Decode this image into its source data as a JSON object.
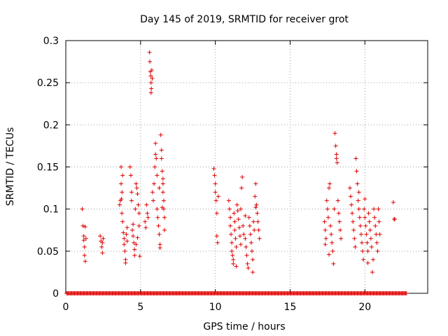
{
  "chart_data": {
    "type": "scatter",
    "title": "Day 145 of 2019, SRMTID for receiver grot",
    "xlabel": "GPS time / hours",
    "ylabel": "SRMTID / TECUs",
    "xlim": [
      0,
      24.2
    ],
    "ylim": [
      0,
      0.3
    ],
    "x_ticks": [
      0,
      5,
      10,
      15,
      20
    ],
    "x_tick_labels": [
      "0",
      "5",
      "10",
      "15",
      "20"
    ],
    "y_ticks": [
      0,
      0.05,
      0.1,
      0.15,
      0.2,
      0.25,
      0.3
    ],
    "y_tick_labels": [
      "0",
      "0.05",
      "0.1",
      "0.15",
      "0.2",
      "0.25",
      "0.3"
    ],
    "grid": true,
    "marker": "plus",
    "series": [
      {
        "name": "SRMTID",
        "color": "#e00000",
        "points": [
          [
            1.1,
            0.1
          ],
          [
            1.15,
            0.08
          ],
          [
            1.2,
            0.068
          ],
          [
            1.2,
            0.063
          ],
          [
            1.25,
            0.055
          ],
          [
            1.25,
            0.045
          ],
          [
            1.3,
            0.038
          ],
          [
            1.3,
            0.079
          ],
          [
            1.35,
            0.065
          ],
          [
            2.3,
            0.068
          ],
          [
            2.35,
            0.062
          ],
          [
            2.4,
            0.055
          ],
          [
            2.45,
            0.048
          ],
          [
            2.5,
            0.065
          ],
          [
            2.45,
            0.06
          ],
          [
            3.6,
            0.105
          ],
          [
            3.65,
            0.11
          ],
          [
            3.7,
            0.13
          ],
          [
            3.7,
            0.15
          ],
          [
            3.75,
            0.095
          ],
          [
            3.8,
            0.14
          ],
          [
            3.8,
            0.085
          ],
          [
            3.85,
            0.072
          ],
          [
            3.9,
            0.065
          ],
          [
            3.9,
            0.058
          ],
          [
            3.95,
            0.05
          ],
          [
            4.0,
            0.04
          ],
          [
            4.0,
            0.036
          ],
          [
            4.05,
            0.07
          ],
          [
            4.1,
            0.062
          ],
          [
            4.1,
            0.078
          ],
          [
            3.72,
            0.112
          ],
          [
            3.76,
            0.12
          ],
          [
            4.3,
            0.15
          ],
          [
            4.35,
            0.14
          ],
          [
            4.4,
            0.12
          ],
          [
            4.4,
            0.11
          ],
          [
            4.45,
            0.075
          ],
          [
            4.5,
            0.082
          ],
          [
            4.5,
            0.068
          ],
          [
            4.55,
            0.06
          ],
          [
            4.6,
            0.052
          ],
          [
            4.6,
            0.045
          ],
          [
            4.65,
            0.1
          ],
          [
            4.7,
            0.13
          ],
          [
            4.75,
            0.125
          ],
          [
            4.8,
            0.118
          ],
          [
            4.85,
            0.105
          ],
          [
            4.9,
            0.095
          ],
          [
            4.9,
            0.08
          ],
          [
            4.95,
            0.044
          ],
          [
            4.7,
            0.058
          ],
          [
            4.8,
            0.066
          ],
          [
            5.3,
            0.085
          ],
          [
            5.35,
            0.078
          ],
          [
            5.4,
            0.105
          ],
          [
            5.45,
            0.095
          ],
          [
            5.5,
            0.09
          ],
          [
            5.6,
            0.286
          ],
          [
            5.62,
            0.275
          ],
          [
            5.65,
            0.263
          ],
          [
            5.68,
            0.258
          ],
          [
            5.7,
            0.25
          ],
          [
            5.72,
            0.243
          ],
          [
            5.7,
            0.238
          ],
          [
            5.75,
            0.265
          ],
          [
            5.78,
            0.255
          ],
          [
            5.8,
            0.12
          ],
          [
            5.85,
            0.11
          ],
          [
            5.9,
            0.13
          ],
          [
            5.95,
            0.15
          ],
          [
            6.0,
            0.178
          ],
          [
            6.0,
            0.165
          ],
          [
            6.05,
            0.16
          ],
          [
            6.1,
            0.14
          ],
          [
            6.1,
            0.1
          ],
          [
            6.15,
            0.09
          ],
          [
            6.2,
            0.08
          ],
          [
            6.25,
            0.07
          ],
          [
            6.3,
            0.058
          ],
          [
            6.3,
            0.054
          ],
          [
            6.35,
            0.188
          ],
          [
            6.4,
            0.17
          ],
          [
            6.4,
            0.16
          ],
          [
            6.45,
            0.145
          ],
          [
            6.5,
            0.13
          ],
          [
            6.5,
            0.12
          ],
          [
            6.55,
            0.11
          ],
          [
            6.55,
            0.1
          ],
          [
            6.6,
            0.09
          ],
          [
            6.6,
            0.075
          ],
          [
            6.45,
            0.102
          ],
          [
            6.5,
            0.136
          ],
          [
            6.25,
            0.125
          ],
          [
            9.9,
            0.148
          ],
          [
            9.95,
            0.14
          ],
          [
            10.0,
            0.13
          ],
          [
            10.0,
            0.12
          ],
          [
            10.05,
            0.11
          ],
          [
            10.1,
            0.095
          ],
          [
            10.1,
            0.068
          ],
          [
            10.15,
            0.06
          ],
          [
            10.2,
            0.115
          ],
          [
            10.9,
            0.11
          ],
          [
            10.95,
            0.1
          ],
          [
            11.0,
            0.09
          ],
          [
            11.0,
            0.08
          ],
          [
            11.05,
            0.07
          ],
          [
            11.1,
            0.06
          ],
          [
            11.1,
            0.05
          ],
          [
            11.15,
            0.045
          ],
          [
            11.2,
            0.04
          ],
          [
            11.2,
            0.035
          ],
          [
            11.25,
            0.095
          ],
          [
            11.3,
            0.085
          ],
          [
            11.3,
            0.075
          ],
          [
            11.35,
            0.065
          ],
          [
            11.4,
            0.055
          ],
          [
            11.45,
            0.105
          ],
          [
            11.5,
            0.098
          ],
          [
            11.55,
            0.088
          ],
          [
            11.6,
            0.078
          ],
          [
            11.65,
            0.068
          ],
          [
            11.7,
            0.058
          ],
          [
            11.75,
            0.125
          ],
          [
            11.8,
            0.138
          ],
          [
            11.85,
            0.08
          ],
          [
            11.9,
            0.07
          ],
          [
            12.0,
            0.065
          ],
          [
            12.05,
            0.055
          ],
          [
            12.1,
            0.045
          ],
          [
            12.15,
            0.035
          ],
          [
            12.2,
            0.03
          ],
          [
            12.25,
            0.09
          ],
          [
            12.3,
            0.08
          ],
          [
            12.35,
            0.07
          ],
          [
            12.4,
            0.06
          ],
          [
            12.45,
            0.05
          ],
          [
            12.5,
            0.04
          ],
          [
            12.5,
            0.025
          ],
          [
            12.55,
            0.085
          ],
          [
            12.6,
            0.075
          ],
          [
            12.65,
            0.115
          ],
          [
            12.7,
            0.13
          ],
          [
            12.75,
            0.105
          ],
          [
            12.8,
            0.095
          ],
          [
            12.85,
            0.085
          ],
          [
            12.9,
            0.075
          ],
          [
            12.95,
            0.065
          ],
          [
            12.7,
            0.102
          ],
          [
            11.7,
            0.1
          ],
          [
            12.0,
            0.092
          ],
          [
            11.4,
            0.032
          ],
          [
            17.3,
            0.085
          ],
          [
            17.35,
            0.075
          ],
          [
            17.4,
            0.065
          ],
          [
            17.45,
            0.11
          ],
          [
            17.5,
            0.1
          ],
          [
            17.55,
            0.09
          ],
          [
            17.6,
            0.125
          ],
          [
            17.65,
            0.13
          ],
          [
            17.7,
            0.08
          ],
          [
            17.75,
            0.07
          ],
          [
            17.8,
            0.06
          ],
          [
            17.85,
            0.05
          ],
          [
            17.9,
            0.035
          ],
          [
            17.95,
            0.1
          ],
          [
            18.0,
            0.19
          ],
          [
            18.05,
            0.175
          ],
          [
            18.1,
            0.165
          ],
          [
            18.1,
            0.16
          ],
          [
            18.15,
            0.155
          ],
          [
            18.2,
            0.11
          ],
          [
            18.25,
            0.095
          ],
          [
            18.3,
            0.085
          ],
          [
            18.35,
            0.075
          ],
          [
            18.4,
            0.065
          ],
          [
            17.35,
            0.058
          ],
          [
            17.6,
            0.046
          ],
          [
            19.0,
            0.125
          ],
          [
            19.05,
            0.115
          ],
          [
            19.1,
            0.105
          ],
          [
            19.15,
            0.095
          ],
          [
            19.2,
            0.085
          ],
          [
            19.25,
            0.075
          ],
          [
            19.3,
            0.065
          ],
          [
            19.35,
            0.055
          ],
          [
            19.4,
            0.16
          ],
          [
            19.45,
            0.145
          ],
          [
            19.5,
            0.13
          ],
          [
            19.55,
            0.11
          ],
          [
            19.6,
            0.1
          ],
          [
            19.65,
            0.09
          ],
          [
            19.7,
            0.08
          ],
          [
            19.75,
            0.07
          ],
          [
            19.8,
            0.06
          ],
          [
            19.85,
            0.05
          ],
          [
            19.9,
            0.04
          ],
          [
            19.95,
            0.1
          ],
          [
            20.0,
            0.09
          ],
          [
            20.05,
            0.08
          ],
          [
            20.1,
            0.07
          ],
          [
            20.15,
            0.06
          ],
          [
            20.2,
            0.05
          ],
          [
            20.25,
            0.095
          ],
          [
            20.3,
            0.085
          ],
          [
            20.35,
            0.075
          ],
          [
            20.4,
            0.065
          ],
          [
            20.45,
            0.055
          ],
          [
            20.5,
            0.025
          ],
          [
            20.55,
            0.04
          ],
          [
            20.6,
            0.1
          ],
          [
            20.65,
            0.09
          ],
          [
            20.7,
            0.08
          ],
          [
            20.75,
            0.07
          ],
          [
            20.8,
            0.06
          ],
          [
            20.85,
            0.05
          ],
          [
            20.9,
            0.1
          ],
          [
            20.95,
            0.085
          ],
          [
            21.0,
            0.07
          ],
          [
            19.6,
            0.12
          ],
          [
            20.0,
            0.112
          ],
          [
            20.2,
            0.036
          ],
          [
            21.9,
            0.108
          ],
          [
            22.0,
            0.088
          ],
          [
            21.95,
            0.088
          ]
        ],
        "zero_line_ranges": [
          [
            0.05,
            22.8
          ]
        ]
      }
    ]
  }
}
